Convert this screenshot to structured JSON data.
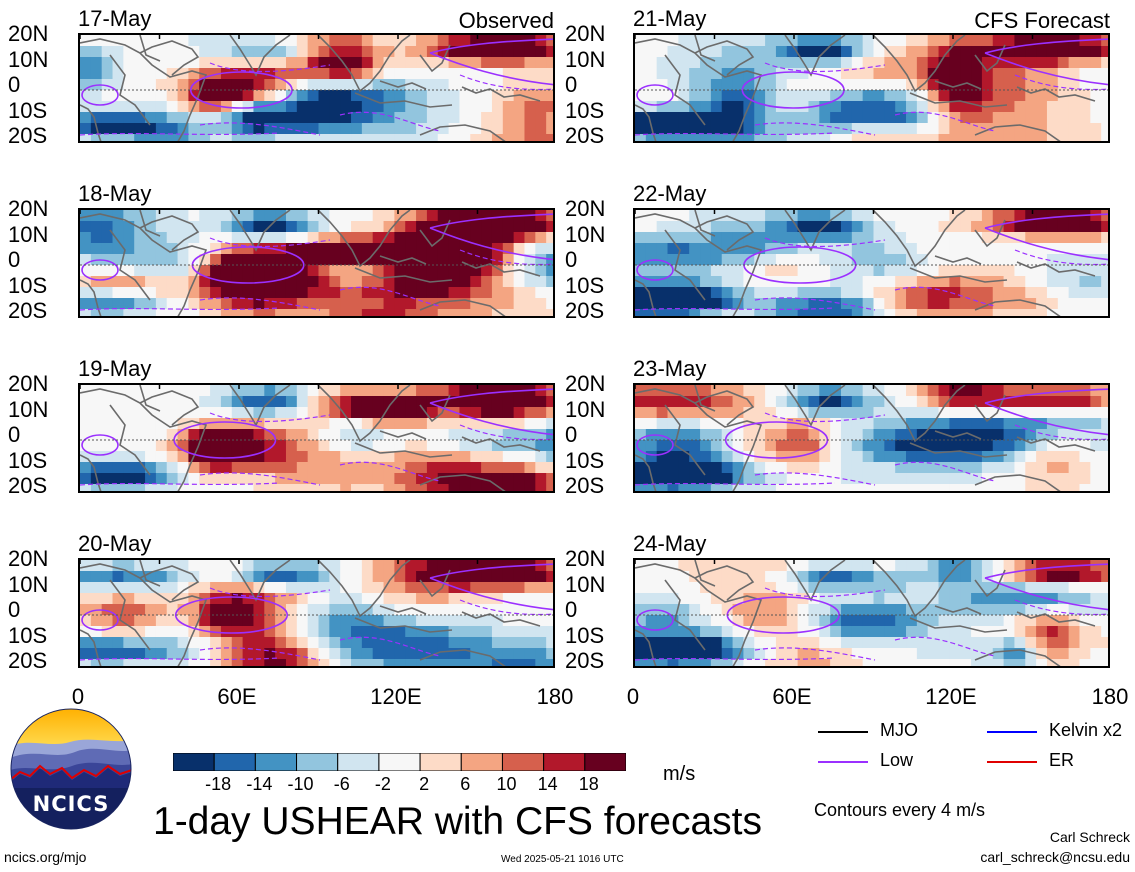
{
  "header": {
    "left_label": "Observed",
    "right_label": "CFS Forecast"
  },
  "panels": {
    "observed": [
      {
        "date": "17-May"
      },
      {
        "date": "18-May"
      },
      {
        "date": "19-May"
      },
      {
        "date": "20-May"
      }
    ],
    "forecast": [
      {
        "date": "21-May"
      },
      {
        "date": "22-May"
      },
      {
        "date": "23-May"
      },
      {
        "date": "24-May"
      }
    ]
  },
  "chart_data": {
    "type": "heatmap",
    "title": "1-day USHEAR with CFS forecasts",
    "variable": "USHEAR",
    "units": "m/s",
    "x_ticks": [
      "0",
      "60E",
      "120E",
      "180"
    ],
    "y_ticks": [
      "20N",
      "10N",
      "0",
      "10S",
      "20S"
    ],
    "xlim": [
      0,
      180
    ],
    "ylim": [
      -20,
      20
    ],
    "colorbar": {
      "labels": [
        "-18",
        "-14",
        "-10",
        "-6",
        "-2",
        "2",
        "6",
        "10",
        "14",
        "18"
      ],
      "colors": [
        "#08306b",
        "#2166ac",
        "#4393c3",
        "#92c5de",
        "#d1e5f0",
        "#f7f7f7",
        "#fddbc7",
        "#f4a582",
        "#d6604d",
        "#b2182b",
        "#67001f"
      ]
    },
    "legend": [
      {
        "label": "MJO",
        "color": "#000000"
      },
      {
        "label": "Kelvin x2",
        "color": "#0000ff"
      },
      {
        "label": "Low",
        "color": "#9b30ff"
      },
      {
        "label": "ER",
        "color": "#e00000"
      }
    ],
    "contour_note": "Contours every 4 m/s"
  },
  "footer": {
    "logo_text": "NCICS",
    "site": "ncics.org/mjo",
    "timestamp": "Wed 2025-05-21 1016 UTC",
    "author": "Carl Schreck",
    "email": "carl_schreck@ncsu.edu"
  }
}
